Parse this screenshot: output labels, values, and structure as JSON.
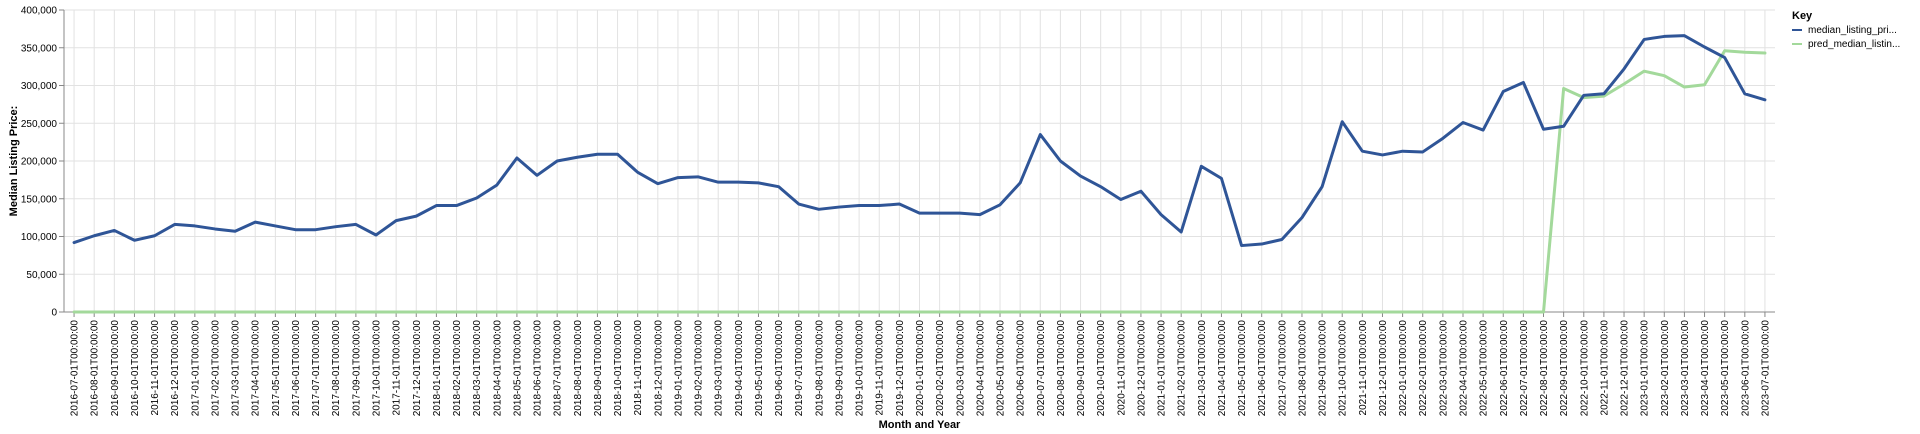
{
  "chart_data": {
    "type": "line",
    "xlabel": "Month and Year",
    "ylabel": "Median Listing Price:",
    "ylim": [
      0,
      400000
    ],
    "yticks": [
      "0",
      "50,000",
      "100,000",
      "150,000",
      "200,000",
      "250,000",
      "300,000",
      "350,000",
      "400,000"
    ],
    "ytick_values": [
      0,
      50000,
      100000,
      150000,
      200000,
      250000,
      300000,
      350000,
      400000
    ],
    "grid": true,
    "legend": {
      "title": "Key",
      "placement": "right"
    },
    "x": [
      "2016-07-01T00:00:00",
      "2016-08-01T00:00:00",
      "2016-09-01T00:00:00",
      "2016-10-01T00:00:00",
      "2016-11-01T00:00:00",
      "2016-12-01T00:00:00",
      "2017-01-01T00:00:00",
      "2017-02-01T00:00:00",
      "2017-03-01T00:00:00",
      "2017-04-01T00:00:00",
      "2017-05-01T00:00:00",
      "2017-06-01T00:00:00",
      "2017-07-01T00:00:00",
      "2017-08-01T00:00:00",
      "2017-09-01T00:00:00",
      "2017-10-01T00:00:00",
      "2017-11-01T00:00:00",
      "2017-12-01T00:00:00",
      "2018-01-01T00:00:00",
      "2018-02-01T00:00:00",
      "2018-03-01T00:00:00",
      "2018-04-01T00:00:00",
      "2018-05-01T00:00:00",
      "2018-06-01T00:00:00",
      "2018-07-01T00:00:00",
      "2018-08-01T00:00:00",
      "2018-09-01T00:00:00",
      "2018-10-01T00:00:00",
      "2018-11-01T00:00:00",
      "2018-12-01T00:00:00",
      "2019-01-01T00:00:00",
      "2019-02-01T00:00:00",
      "2019-03-01T00:00:00",
      "2019-04-01T00:00:00",
      "2019-05-01T00:00:00",
      "2019-06-01T00:00:00",
      "2019-07-01T00:00:00",
      "2019-08-01T00:00:00",
      "2019-09-01T00:00:00",
      "2019-10-01T00:00:00",
      "2019-11-01T00:00:00",
      "2019-12-01T00:00:00",
      "2020-01-01T00:00:00",
      "2020-02-01T00:00:00",
      "2020-03-01T00:00:00",
      "2020-04-01T00:00:00",
      "2020-05-01T00:00:00",
      "2020-06-01T00:00:00",
      "2020-07-01T00:00:00",
      "2020-08-01T00:00:00",
      "2020-09-01T00:00:00",
      "2020-10-01T00:00:00",
      "2020-11-01T00:00:00",
      "2020-12-01T00:00:00",
      "2021-01-01T00:00:00",
      "2021-02-01T00:00:00",
      "2021-03-01T00:00:00",
      "2021-04-01T00:00:00",
      "2021-05-01T00:00:00",
      "2021-06-01T00:00:00",
      "2021-07-01T00:00:00",
      "2021-08-01T00:00:00",
      "2021-09-01T00:00:00",
      "2021-10-01T00:00:00",
      "2021-11-01T00:00:00",
      "2021-12-01T00:00:00",
      "2022-01-01T00:00:00",
      "2022-02-01T00:00:00",
      "2022-03-01T00:00:00",
      "2022-04-01T00:00:00",
      "2022-05-01T00:00:00",
      "2022-06-01T00:00:00",
      "2022-07-01T00:00:00",
      "2022-08-01T00:00:00",
      "2022-09-01T00:00:00",
      "2022-10-01T00:00:00",
      "2022-11-01T00:00:00",
      "2022-12-01T00:00:00",
      "2023-01-01T00:00:00",
      "2023-02-01T00:00:00",
      "2023-03-01T00:00:00",
      "2023-04-01T00:00:00",
      "2023-05-01T00:00:00",
      "2023-06-01T00:00:00",
      "2023-07-01T00:00:00"
    ],
    "series": [
      {
        "name": "median_listing_pri...",
        "color": "#2f5597",
        "values": [
          92000,
          101000,
          108000,
          95000,
          101000,
          116000,
          114000,
          110000,
          107000,
          119000,
          114000,
          109000,
          109000,
          113000,
          116000,
          102000,
          121000,
          127000,
          141000,
          141000,
          151000,
          168000,
          204000,
          181000,
          200000,
          205000,
          209000,
          209000,
          185000,
          170000,
          178000,
          179000,
          172000,
          172000,
          171000,
          166000,
          143000,
          136000,
          139000,
          141000,
          141000,
          143000,
          131000,
          131000,
          131000,
          129000,
          142000,
          171000,
          235000,
          200000,
          180000,
          166000,
          149000,
          160000,
          129000,
          106000,
          193000,
          177000,
          88000,
          90000,
          96000,
          125000,
          166000,
          252000,
          213000,
          208000,
          213000,
          212000,
          230000,
          251000,
          241000,
          292000,
          304000,
          242000,
          246000,
          287000,
          289000,
          322000,
          361000,
          365000,
          366000,
          351000,
          337000,
          289000,
          281000
        ]
      },
      {
        "name": "pred_median_listin...",
        "color": "#a3d99b",
        "values": [
          0,
          0,
          0,
          0,
          0,
          0,
          0,
          0,
          0,
          0,
          0,
          0,
          0,
          0,
          0,
          0,
          0,
          0,
          0,
          0,
          0,
          0,
          0,
          0,
          0,
          0,
          0,
          0,
          0,
          0,
          0,
          0,
          0,
          0,
          0,
          0,
          0,
          0,
          0,
          0,
          0,
          0,
          0,
          0,
          0,
          0,
          0,
          0,
          0,
          0,
          0,
          0,
          0,
          0,
          0,
          0,
          0,
          0,
          0,
          0,
          0,
          0,
          0,
          0,
          0,
          0,
          0,
          0,
          0,
          0,
          0,
          0,
          0,
          0,
          296000,
          284000,
          286000,
          302000,
          319000,
          313000,
          298000,
          301000,
          346000,
          344000,
          343000
        ]
      }
    ]
  }
}
